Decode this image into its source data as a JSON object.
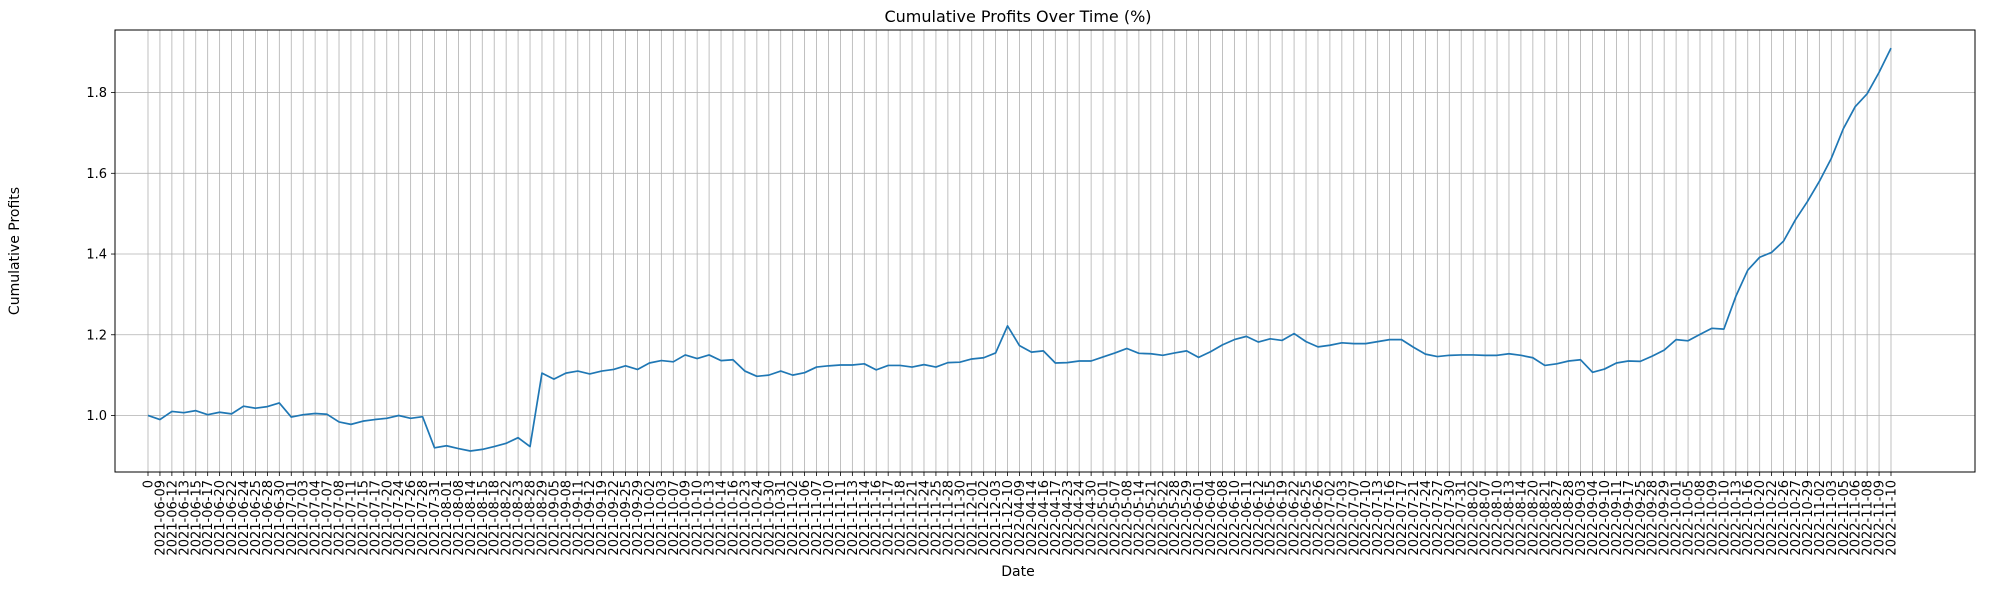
{
  "chart_data": {
    "type": "line",
    "title": "Cumulative Profits Over Time (%)",
    "xlabel": "Date",
    "ylabel": "Cumulative Profits",
    "ylim": [
      0.86,
      1.955
    ],
    "yticks": [
      1.0,
      1.2,
      1.4,
      1.6,
      1.8
    ],
    "ytick_labels": [
      "1.0",
      "1.2",
      "1.4",
      "1.6",
      "1.8"
    ],
    "grid": true,
    "line_color": "#1f77b4",
    "categories": [
      "0",
      "2021-06-09",
      "2021-06-12",
      "2021-06-13",
      "2021-06-15",
      "2021-06-17",
      "2021-06-20",
      "2021-06-22",
      "2021-06-24",
      "2021-06-25",
      "2021-06-28",
      "2021-06-30",
      "2021-07-01",
      "2021-07-03",
      "2021-07-04",
      "2021-07-07",
      "2021-07-08",
      "2021-07-11",
      "2021-07-15",
      "2021-07-17",
      "2021-07-20",
      "2021-07-24",
      "2021-07-26",
      "2021-07-28",
      "2021-07-31",
      "2021-08-01",
      "2021-08-08",
      "2021-08-14",
      "2021-08-15",
      "2021-08-18",
      "2021-08-22",
      "2021-08-23",
      "2021-08-28",
      "2021-08-29",
      "2021-09-05",
      "2021-09-08",
      "2021-09-11",
      "2021-09-12",
      "2021-09-19",
      "2021-09-22",
      "2021-09-25",
      "2021-09-29",
      "2021-10-02",
      "2021-10-03",
      "2021-10-07",
      "2021-10-09",
      "2021-10-10",
      "2021-10-13",
      "2021-10-14",
      "2021-10-16",
      "2021-10-23",
      "2021-10-24",
      "2021-10-30",
      "2021-10-31",
      "2021-11-02",
      "2021-11-06",
      "2021-11-07",
      "2021-11-10",
      "2021-11-11",
      "2021-11-13",
      "2021-11-14",
      "2021-11-16",
      "2021-11-17",
      "2021-11-18",
      "2021-11-21",
      "2021-11-24",
      "2021-11-25",
      "2021-11-28",
      "2021-11-30",
      "2021-12-01",
      "2021-12-02",
      "2021-12-03",
      "2021-12-10",
      "2022-04-09",
      "2022-04-14",
      "2022-04-16",
      "2022-04-17",
      "2022-04-23",
      "2022-04-24",
      "2022-04-30",
      "2022-05-01",
      "2022-05-07",
      "2022-05-08",
      "2022-05-14",
      "2022-05-21",
      "2022-05-22",
      "2022-05-28",
      "2022-05-29",
      "2022-06-01",
      "2022-06-04",
      "2022-06-08",
      "2022-06-10",
      "2022-06-11",
      "2022-06-12",
      "2022-06-15",
      "2022-06-19",
      "2022-06-22",
      "2022-06-25",
      "2022-06-26",
      "2022-07-02",
      "2022-07-03",
      "2022-07-07",
      "2022-07-10",
      "2022-07-13",
      "2022-07-16",
      "2022-07-17",
      "2022-07-21",
      "2022-07-24",
      "2022-07-27",
      "2022-07-30",
      "2022-07-31",
      "2022-08-02",
      "2022-08-07",
      "2022-08-10",
      "2022-08-13",
      "2022-08-14",
      "2022-08-20",
      "2022-08-21",
      "2022-08-27",
      "2022-08-28",
      "2022-09-03",
      "2022-09-04",
      "2022-09-10",
      "2022-09-11",
      "2022-09-17",
      "2022-09-25",
      "2022-09-28",
      "2022-09-29",
      "2022-10-01",
      "2022-10-05",
      "2022-10-08",
      "2022-10-09",
      "2022-10-10",
      "2022-10-13",
      "2022-10-16",
      "2022-10-20",
      "2022-10-22",
      "2022-10-26",
      "2022-10-27",
      "2022-10-29",
      "2022-11-02",
      "2022-11-03",
      "2022-11-05",
      "2022-11-06",
      "2022-11-08",
      "2022-11-09",
      "2022-11-10"
    ],
    "values": [
      1.0,
      0.99,
      1.01,
      1.007,
      1.012,
      1.002,
      1.008,
      1.004,
      1.023,
      1.018,
      1.022,
      1.031,
      0.996,
      1.002,
      1.005,
      1.003,
      0.984,
      0.978,
      0.986,
      0.99,
      0.993,
      1.0,
      0.993,
      0.997,
      0.92,
      0.925,
      0.918,
      0.912,
      0.916,
      0.923,
      0.931,
      0.945,
      0.923,
      1.105,
      1.09,
      1.105,
      1.11,
      1.103,
      1.11,
      1.114,
      1.123,
      1.114,
      1.13,
      1.136,
      1.133,
      1.15,
      1.141,
      1.15,
      1.136,
      1.138,
      1.11,
      1.097,
      1.1,
      1.11,
      1.1,
      1.106,
      1.12,
      1.123,
      1.125,
      1.125,
      1.128,
      1.113,
      1.124,
      1.124,
      1.12,
      1.126,
      1.12,
      1.131,
      1.132,
      1.14,
      1.143,
      1.155,
      1.222,
      1.173,
      1.157,
      1.16,
      1.13,
      1.131,
      1.135,
      1.135,
      1.145,
      1.155,
      1.166,
      1.154,
      1.153,
      1.149,
      1.155,
      1.16,
      1.144,
      1.158,
      1.175,
      1.188,
      1.196,
      1.182,
      1.19,
      1.186,
      1.203,
      1.183,
      1.17,
      1.174,
      1.18,
      1.178,
      1.178,
      1.183,
      1.188,
      1.188,
      1.169,
      1.152,
      1.146,
      1.149,
      1.15,
      1.15,
      1.149,
      1.149,
      1.153,
      1.149,
      1.143,
      1.124,
      1.128,
      1.135,
      1.138,
      1.107,
      1.115,
      1.13,
      1.135,
      1.134,
      1.147,
      1.162,
      1.188,
      1.185,
      1.201,
      1.216,
      1.214,
      1.295,
      1.36,
      1.392,
      1.404,
      1.432,
      1.485,
      1.53,
      1.58,
      1.637,
      1.71,
      1.765,
      1.797,
      1.85,
      1.91
    ]
  }
}
